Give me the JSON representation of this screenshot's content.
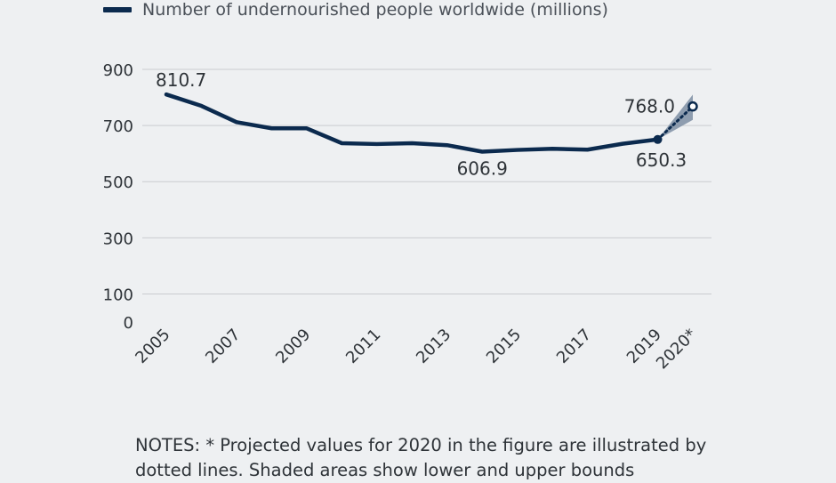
{
  "legend": {
    "label": "Number of undernourished people worldwide (millions)"
  },
  "notes": "NOTES: * Projected values for 2020 in the figure are illustrated by dotted lines. Shaded areas show lower and upper bounds",
  "colors": {
    "line": "#0b2a4e",
    "band": "#7d8ea3",
    "grid": "#c9ccd0",
    "background": "#eef0f2"
  },
  "chart_data": {
    "type": "line",
    "title": "",
    "xlabel": "",
    "ylabel": "",
    "ylim": [
      0,
      900
    ],
    "y_ticks": [
      "0",
      "100",
      "300",
      "500",
      "700",
      "900"
    ],
    "y_tick_values": [
      0,
      100,
      300,
      500,
      700,
      900
    ],
    "x_tick_labels": [
      "2005",
      "2007",
      "2009",
      "2011",
      "2013",
      "2015",
      "2017",
      "2019",
      "2020*"
    ],
    "x_tick_values": [
      2005,
      2007,
      2009,
      2011,
      2013,
      2015,
      2017,
      2019,
      2020
    ],
    "series": [
      {
        "name": "Number of undernourished people worldwide (millions)",
        "x": [
          2005,
          2006,
          2007,
          2008,
          2009,
          2010,
          2011,
          2012,
          2013,
          2014,
          2015,
          2016,
          2017,
          2018,
          2019
        ],
        "values": [
          810.7,
          770,
          712,
          690,
          690,
          637,
          634,
          637,
          630,
          606.9,
          613,
          617,
          614,
          635,
          650.3
        ]
      }
    ],
    "projection": {
      "from": {
        "x": 2019,
        "value": 650.3
      },
      "to": {
        "x": 2020,
        "value": 768.0
      },
      "lower_bound": 720,
      "upper_bound": 810
    },
    "data_labels": [
      {
        "x": 2005,
        "value": 810.7,
        "text": "810.7"
      },
      {
        "x": 2014,
        "value": 606.9,
        "text": "606.9"
      },
      {
        "x": 2019,
        "value": 650.3,
        "text": "650.3"
      },
      {
        "x": 2020,
        "value": 768.0,
        "text": "768.0"
      }
    ]
  }
}
